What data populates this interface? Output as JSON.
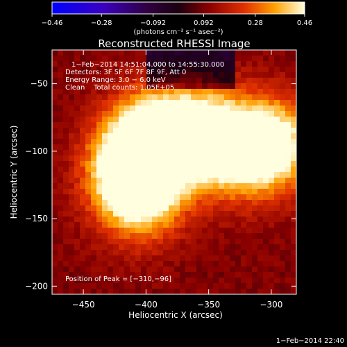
{
  "chart_data": {
    "type": "heatmap",
    "title": "Reconstructed RHESSI Image",
    "xlabel": "Heliocentric X (arcsec)",
    "ylabel": "Heliocentric Y (arcsec)",
    "xlim": [
      -475,
      -280
    ],
    "ylim": [
      -206,
      -25
    ],
    "x_ticks": [
      -450,
      -400,
      -350,
      -300
    ],
    "y_ticks": [
      -50,
      -100,
      -150,
      -200
    ],
    "x_tick_labels": [
      "−450",
      "−400",
      "−350",
      "−300"
    ],
    "y_tick_labels": [
      "−50",
      "−100",
      "−150",
      "−200"
    ],
    "colorbar": {
      "range": [
        -0.46,
        0.46
      ],
      "ticks": [
        -0.46,
        -0.28,
        -0.092,
        0.092,
        0.28,
        0.46
      ],
      "tick_labels": [
        "−0.46",
        "−0.28",
        "−0.092",
        "0.092",
        "0.28",
        "0.46"
      ],
      "units": "(photons cm⁻² s⁻¹ asec⁻²)"
    },
    "sources": [
      {
        "x": -396,
        "y": -91,
        "amplitude": 0.46
      },
      {
        "x": -300,
        "y": -96,
        "amplitude": 0.44
      },
      {
        "x": -338,
        "y": -98,
        "amplitude": 0.36
      },
      {
        "x": -404,
        "y": -132,
        "amplitude": 0.38
      },
      {
        "x": -418,
        "y": -112,
        "amplitude": 0.25
      },
      {
        "x": -362,
        "y": -82,
        "amplitude": 0.26
      }
    ],
    "annotations": {
      "time_range": "1−Feb−2014 14:51:04.000 to 14:55:30.000",
      "detectors": "Detectors: 3F 5F 6F 7F 8F 9F, Att 0",
      "energy": "Energy Range: 3.0 − 6.0 keV",
      "clean": "Clean    Total counts: 1.05E+05",
      "peak": "Position of Peak = [−310,−96]"
    },
    "timestamp": "1−Feb−2014 22:40"
  }
}
